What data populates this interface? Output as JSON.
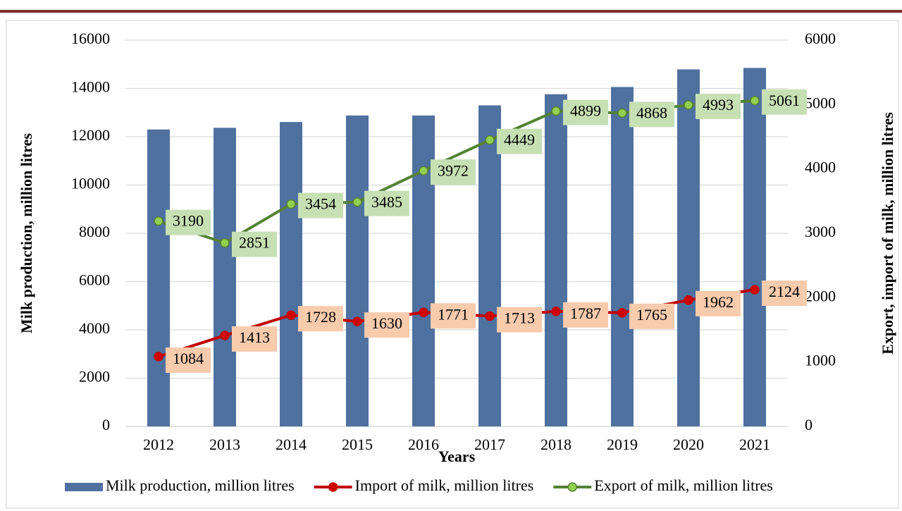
{
  "chart_data": {
    "type": "combo",
    "xlabel": "Years",
    "ylabel": "Milk production, million litres",
    "y2label": "Export, import of milk, million litres",
    "categories": [
      "2012",
      "2013",
      "2014",
      "2015",
      "2016",
      "2017",
      "2018",
      "2019",
      "2020",
      "2021"
    ],
    "ylim": [
      0,
      16000
    ],
    "yticks": [
      0,
      2000,
      4000,
      6000,
      8000,
      10000,
      12000,
      14000,
      16000
    ],
    "y2lim": [
      0,
      6000
    ],
    "y2ticks": [
      0,
      1000,
      2000,
      3000,
      4000,
      5000,
      6000
    ],
    "grid": true,
    "legend": "bottom",
    "series": [
      {
        "name": "Milk production, million litres",
        "type": "bar",
        "color": "#4f71a0",
        "values": [
          12300,
          12370,
          12610,
          12880,
          12880,
          13300,
          13760,
          14060,
          14790,
          14850
        ]
      },
      {
        "name": "Import of milk, million litres",
        "type": "line",
        "axis": "y2",
        "color": "#c00000",
        "marker_color": "#d00000",
        "label_color": "#f8cbad",
        "values": [
          1084,
          1413,
          1728,
          1630,
          1771,
          1713,
          1787,
          1765,
          1962,
          2124
        ]
      },
      {
        "name": "Export of milk, million litres",
        "type": "line",
        "axis": "y2",
        "color": "#548235",
        "marker_color": "#92d050",
        "label_color": "#c6e0b4",
        "values": [
          3190,
          2851,
          3454,
          3485,
          3972,
          4449,
          4899,
          4868,
          4993,
          5061
        ]
      }
    ]
  }
}
